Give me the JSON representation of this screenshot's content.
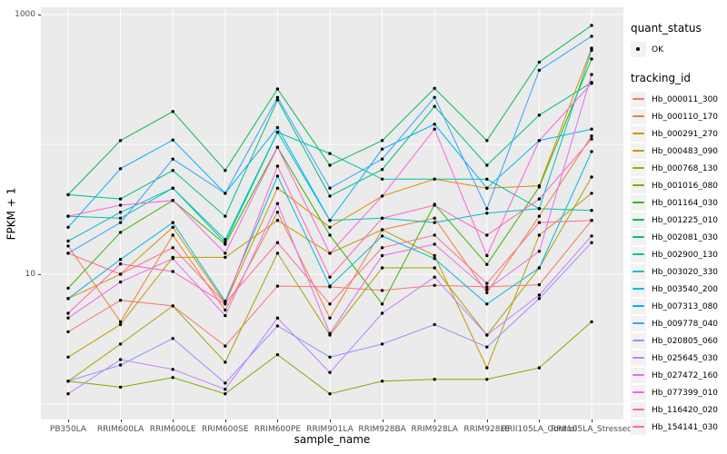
{
  "legend": {
    "quant_status_title": "quant_status",
    "quant_items": [
      {
        "label": "OK",
        "marker": "point",
        "color": "#000000"
      }
    ],
    "tracking_title": "tracking_id"
  },
  "colors": {
    "panel_background": "#EBEBEB",
    "gridline": "#FFFFFF",
    "axis_text": "#4D4D4D",
    "axis_title": "#000000",
    "legend_key_background": "#F2F2F2",
    "point": "#000000",
    "page_background": "#FFFFFF"
  },
  "chart_data": {
    "type": "line",
    "title": "",
    "xlabel": "sample_name",
    "ylabel": "FPKM + 1",
    "y_scale": "log10",
    "ylim": [
      1,
      1000
    ],
    "y_ticks": [
      {
        "label": "1000",
        "value": 1000
      },
      {
        "label": "10",
        "value": 10
      }
    ],
    "y_gridline_values": [
      1,
      10,
      100,
      1000
    ],
    "grid": true,
    "legend_position": "right",
    "point_marker": "black dot on every observation (quant_status = OK)",
    "x": [
      "PB350LA",
      "RRIM600LA",
      "RRIM600LE",
      "RRIM600SE",
      "RRIM600PE",
      "RRIM901LA",
      "RRIM928BA",
      "RRIM928LA",
      "RRIM928LE",
      "RRII105LA_Control",
      "RRII105LA_Stressed"
    ],
    "series": [
      {
        "name": "Hb_000011_300",
        "color": "#F8766D",
        "values": [
          3.6,
          6.3,
          5.7,
          2.8,
          8.1,
          8.0,
          7.5,
          8.2,
          8.0,
          8.3,
          26
        ]
      },
      {
        "name": "Hb_000110_170",
        "color": "#EA8331",
        "values": [
          16.5,
          4.3,
          20,
          5.3,
          30,
          4.6,
          22,
          27,
          7.2,
          28,
          116
        ]
      },
      {
        "name": "Hb_000291_270",
        "color": "#D89000",
        "values": [
          6.5,
          10,
          23,
          6.0,
          46,
          23,
          40,
          54,
          46,
          48,
          550
        ]
      },
      {
        "name": "Hb_000483_090",
        "color": "#C09B00",
        "values": [
          2.3,
          4.1,
          13.5,
          13.5,
          26,
          14.5,
          22,
          13.9,
          1.9,
          20,
          42
        ]
      },
      {
        "name": "Hb_000768_130",
        "color": "#A3A500",
        "values": [
          1.5,
          2.9,
          5.7,
          2.1,
          14.5,
          3.4,
          11.2,
          11.2,
          3.4,
          11.2,
          56
        ]
      },
      {
        "name": "Hb_001016_080",
        "color": "#7CAE00",
        "values": [
          1.5,
          1.35,
          1.6,
          1.2,
          2.4,
          1.2,
          1.5,
          1.55,
          1.55,
          1.9,
          4.3
        ]
      },
      {
        "name": "Hb_001164_030",
        "color": "#39B600",
        "values": [
          7.8,
          21,
          37,
          17,
          95,
          20,
          5.9,
          34.5,
          11.9,
          47,
          455
        ]
      },
      {
        "name": "Hb_001225_010",
        "color": "#00BB4E",
        "values": [
          41,
          107,
          179,
          63,
          267,
          69,
          107,
          270,
          107,
          430,
          824
        ]
      },
      {
        "name": "Hb_002081_030",
        "color": "#00BF7D",
        "values": [
          41,
          38,
          63,
          28,
          220,
          40,
          64,
          196,
          69,
          168,
          300
        ]
      },
      {
        "name": "Hb_002900_130",
        "color": "#00C1A3",
        "values": [
          28,
          27,
          46,
          17.5,
          124,
          85,
          54,
          54,
          54,
          32,
          31
        ]
      },
      {
        "name": "Hb_003020_330",
        "color": "#00BFC4",
        "values": [
          18,
          30,
          46,
          18.5,
          124,
          26,
          27,
          25,
          29.5,
          32,
          530
        ]
      },
      {
        "name": "Hb_003540_200",
        "color": "#00BAE0",
        "values": [
          6.5,
          13,
          25,
          6.2,
          57,
          8.1,
          19.7,
          13.2,
          5.9,
          11.2,
          88
        ]
      },
      {
        "name": "Hb_007313_080",
        "color": "#00B0F6",
        "values": [
          23,
          65,
          108,
          42,
          135,
          26,
          92,
          143,
          46,
          107,
          131
        ]
      },
      {
        "name": "Hb_009778_040",
        "color": "#35A2FF",
        "values": [
          14.5,
          25,
          77,
          42,
          230,
          46,
          77,
          230,
          32,
          372,
          680
        ]
      },
      {
        "name": "Hb_020805_060",
        "color": "#9590FF",
        "values": [
          1.5,
          2.0,
          3.2,
          1.45,
          4.0,
          2.3,
          2.9,
          4.1,
          2.75,
          6.5,
          17.5
        ]
      },
      {
        "name": "Hb_025645_030",
        "color": "#C77CFF",
        "values": [
          1.2,
          2.2,
          1.85,
          1.3,
          4.6,
          1.75,
          5.0,
          9.5,
          3.4,
          6.9,
          19.7
        ]
      },
      {
        "name": "Hb_027472_160",
        "color": "#E76BF3",
        "values": [
          4.6,
          8.7,
          13.2,
          4.8,
          35,
          3.5,
          13.9,
          17,
          7.6,
          15,
          345
        ]
      },
      {
        "name": "Hb_077399_010",
        "color": "#FA62DB",
        "values": [
          28,
          34,
          37,
          14.5,
          95,
          14.5,
          40,
          131,
          13.9,
          107,
          295
        ]
      },
      {
        "name": "Hb_116420_020",
        "color": "#FF62BC",
        "values": [
          5.0,
          12,
          10.5,
          5.9,
          68,
          9.5,
          27,
          34,
          20,
          38,
          110
        ]
      },
      {
        "name": "Hb_154141_030",
        "color": "#FF6A98",
        "values": [
          14.5,
          10,
          16,
          6.0,
          17.5,
          5.9,
          16,
          20,
          8.5,
          25,
          26
        ]
      }
    ]
  }
}
